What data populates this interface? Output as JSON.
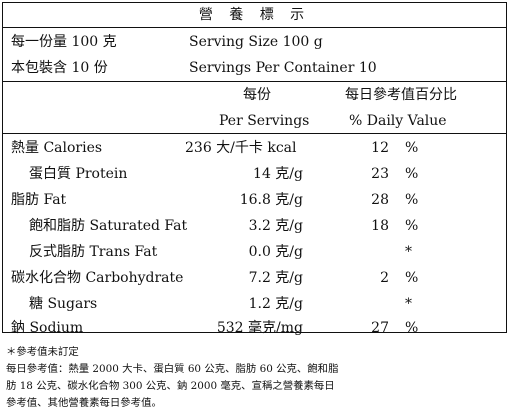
{
  "title": "營 養 標 示",
  "serving": {
    "size_zh": "每一份量 100 克",
    "size_en": "Serving Size 100 g",
    "per_container_zh": "本包裝含 10 份",
    "per_container_en": "Servings Per Container 10"
  },
  "headers": {
    "per_serving_zh": "每份",
    "per_serving_en": "Per Servings",
    "daily_zh": "每日參考值百分比",
    "daily_en": "% Daily Value"
  },
  "rows": [
    {
      "name": "熱量 Calories",
      "value": "236 大/千卡 kcal",
      "pct": "12",
      "unit": "%"
    },
    {
      "name": "蛋白質 Protein",
      "value": "14 克/g",
      "pct": "23",
      "unit": "%"
    },
    {
      "name": "脂肪 Fat",
      "value": "16.8 克/g",
      "pct": "28",
      "unit": "%"
    },
    {
      "name": "飽和脂肪 Saturated Fat",
      "value": "3.2 克/g",
      "pct": "18",
      "unit": "%"
    },
    {
      "name": "反式脂肪 Trans Fat",
      "value": "0.0 克/g",
      "pct": "",
      "unit": "*"
    },
    {
      "name": "碳水化合物 Carbohydrate",
      "value": "7.2 克/g",
      "pct": "2",
      "unit": "%"
    },
    {
      "name": "糖 Sugars",
      "value": "1.2 克/g",
      "pct": "",
      "unit": "*"
    },
    {
      "name": "鈉 Sodium",
      "value": "532 毫克/mg",
      "pct": "27",
      "unit": "%"
    }
  ],
  "footnotes": [
    "＊參考值未訂定",
    "每日參考值：熱量 2000 大卡、蛋白質 60 公克、脂肪 60 公克、飽和脂",
    "肪 18 公克、碳水化合物 300 公克、鈉 2000 毫克、宣稱之營養素每日",
    "參考值、其他營養素每日參考值。"
  ]
}
